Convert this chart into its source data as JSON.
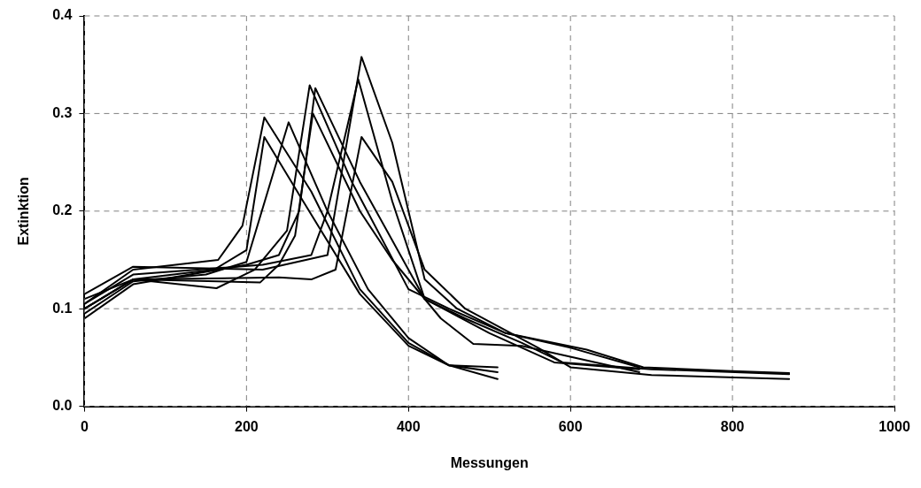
{
  "chart_data": {
    "type": "line",
    "xlabel": "Messungen",
    "ylabel": "Extinktion",
    "xlim": [
      0,
      1000
    ],
    "xticks": [
      0,
      200,
      400,
      600,
      800,
      1000
    ],
    "ylim": [
      0,
      0.4
    ],
    "yticks": [
      {
        "value": 0,
        "label": "0.0"
      },
      {
        "value": 0.1,
        "label": "0.1"
      },
      {
        "value": 0.2,
        "label": "0.2"
      },
      {
        "value": 0.3,
        "label": "0.3"
      },
      {
        "value": 0.4,
        "label": "0.4"
      }
    ],
    "grid": true,
    "legend": false,
    "marker": "none",
    "line_style": "solid",
    "series": [
      {
        "color": "#000000",
        "x": [
          0,
          60,
          165,
          195,
          222,
          280,
          340,
          400,
          450,
          510
        ],
        "values": [
          0.105,
          0.14,
          0.15,
          0.185,
          0.296,
          0.22,
          0.12,
          0.065,
          0.042,
          0.04
        ]
      },
      {
        "color": "#000000",
        "x": [
          0,
          60,
          160,
          200,
          222,
          270,
          340,
          400,
          450,
          510
        ],
        "values": [
          0.1,
          0.13,
          0.14,
          0.16,
          0.276,
          0.21,
          0.115,
          0.062,
          0.042,
          0.035
        ]
      },
      {
        "color": "#000000",
        "x": [
          0,
          60,
          150,
          200,
          252,
          300,
          350,
          400,
          450,
          510
        ],
        "values": [
          0.095,
          0.128,
          0.135,
          0.148,
          0.291,
          0.2,
          0.12,
          0.07,
          0.042,
          0.028
        ]
      },
      {
        "color": "#000000",
        "x": [
          0,
          60,
          163,
          210,
          250,
          278,
          330,
          400,
          450,
          520,
          600,
          685
        ],
        "values": [
          0.11,
          0.13,
          0.121,
          0.14,
          0.18,
          0.329,
          0.23,
          0.12,
          0.1,
          0.075,
          0.06,
          0.04
        ]
      },
      {
        "color": "#000000",
        "x": [
          0,
          60,
          200,
          240,
          265,
          285,
          340,
          420,
          500,
          580,
          685
        ],
        "values": [
          0.09,
          0.125,
          0.145,
          0.155,
          0.2,
          0.326,
          0.23,
          0.11,
          0.075,
          0.045,
          0.038
        ]
      },
      {
        "color": "#000000",
        "x": [
          0,
          60,
          217,
          240,
          260,
          282,
          340,
          380,
          440,
          480,
          540,
          685
        ],
        "values": [
          0.1,
          0.13,
          0.127,
          0.145,
          0.175,
          0.3,
          0.2,
          0.15,
          0.09,
          0.064,
          0.062,
          0.035
        ]
      },
      {
        "color": "#000000",
        "x": [
          0,
          60,
          220,
          300,
          342,
          380,
          420,
          460,
          520,
          620,
          690,
          800,
          870
        ],
        "values": [
          0.115,
          0.143,
          0.14,
          0.155,
          0.358,
          0.27,
          0.13,
          0.1,
          0.075,
          0.058,
          0.04,
          0.036,
          0.034
        ]
      },
      {
        "color": "#000000",
        "x": [
          0,
          60,
          220,
          280,
          300,
          338,
          380,
          420,
          470,
          540,
          590,
          700,
          870
        ],
        "values": [
          0.105,
          0.135,
          0.145,
          0.155,
          0.2,
          0.335,
          0.21,
          0.11,
          0.09,
          0.065,
          0.045,
          0.038,
          0.033
        ]
      },
      {
        "color": "#000000",
        "x": [
          0,
          60,
          240,
          280,
          310,
          342,
          380,
          420,
          470,
          560,
          600,
          700,
          870
        ],
        "values": [
          0.1,
          0.13,
          0.132,
          0.13,
          0.14,
          0.276,
          0.23,
          0.14,
          0.1,
          0.06,
          0.04,
          0.032,
          0.028
        ]
      }
    ]
  }
}
